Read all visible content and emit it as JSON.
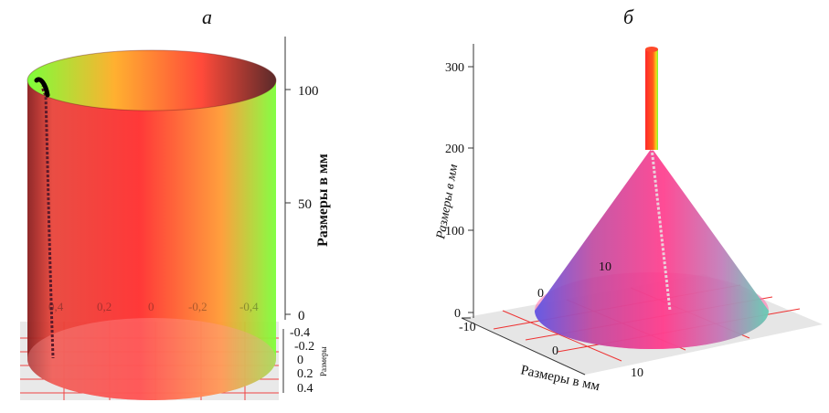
{
  "panel_a": {
    "letter": "а",
    "z_axis_label": "Размеры в мм",
    "z_ticks": [
      "100",
      "50",
      "0"
    ],
    "floor_ticks": [
      "-0.4",
      "-0.2",
      "0",
      "0.2",
      "0.4"
    ],
    "inner_ticks": [
      "0,4",
      "0,2",
      "0",
      "-0,2",
      "-0,4"
    ],
    "edge_label": "Размеры"
  },
  "panel_b": {
    "letter": "б",
    "z_axis_label": "Размеры в мм",
    "z_ticks": [
      "300",
      "200",
      "100",
      "0"
    ],
    "x_axis_label": "Размеры в мм",
    "x_ticks": [
      "-10",
      "0",
      "10"
    ],
    "y_ticks": [
      "10",
      "0"
    ]
  },
  "colors": {
    "red": "#ff2a2a",
    "green": "#7dff3a",
    "pink": "#ff3c8c",
    "blue": "#5a55e6",
    "teal": "#5fd0b4"
  }
}
